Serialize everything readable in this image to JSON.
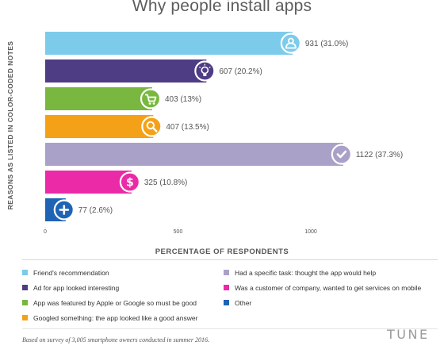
{
  "chart_data": {
    "type": "bar",
    "orientation": "horizontal",
    "title": "Why people install apps",
    "xlabel": "PERCENTAGE OF RESPONDENTS",
    "ylabel": "REASONS AS LISTED IN COLOR-CODED NOTES",
    "xlim": [
      0,
      1300
    ],
    "x_ticks": [
      "0",
      "500",
      "1000"
    ],
    "x_tick_values": [
      0,
      500,
      1000
    ],
    "bars": [
      {
        "value": 931,
        "label": "931 (31.0%)",
        "color": "#7ccbea",
        "icon": "person-icon",
        "legend": "Friend's recommendation"
      },
      {
        "value": 607,
        "label": "607 (20.2%)",
        "color": "#4e3d85",
        "icon": "lightbulb-icon",
        "legend": "Ad for app looked interesting"
      },
      {
        "value": 403,
        "label": "403 (13%)",
        "color": "#79b740",
        "icon": "cart-icon",
        "legend": "App was featured by Apple or Google so must be good"
      },
      {
        "value": 407,
        "label": "407 (13.5%)",
        "color": "#f5a118",
        "icon": "magnifier-icon",
        "legend": "Googled something: the app looked like a good answer"
      },
      {
        "value": 1122,
        "label": "1122 (37.3%)",
        "color": "#aaa1c8",
        "icon": "checkmark-icon",
        "legend": "Had a specific task: thought the app would help"
      },
      {
        "value": 325,
        "label": "325 (10.8%)",
        "color": "#ea2aa6",
        "icon": "dollar-icon",
        "legend": "Was a customer of company, wanted to get services on mobile"
      },
      {
        "value": 77,
        "label": "77 (2.6%)",
        "color": "#1f63b5",
        "icon": "plus-icon",
        "legend": "Other"
      }
    ],
    "grid": false,
    "legend_position": "bottom"
  },
  "legend_columns": [
    [
      0,
      1,
      2,
      3
    ],
    [
      4,
      5,
      6
    ]
  ],
  "footnote": "Based on survey of 3,005 smartphone owners conducted in summer 2016.",
  "brand": "TUNE"
}
